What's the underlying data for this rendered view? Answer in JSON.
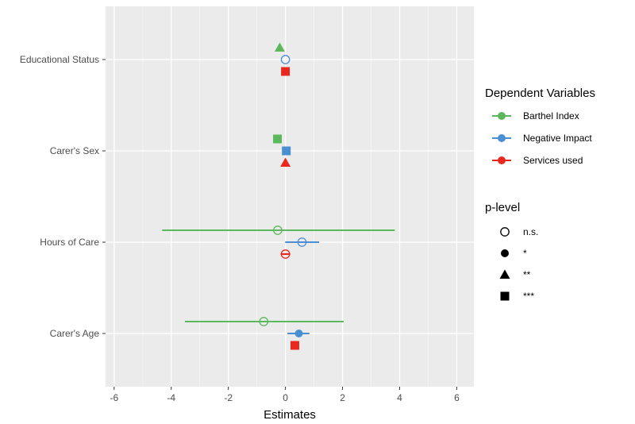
{
  "chart_data": {
    "type": "scatter",
    "subtype": "forest-plot-with-error-bars",
    "xlabel": "Estimates",
    "ylabel": "",
    "xlim": [
      -6.3,
      6.6
    ],
    "xticks": [
      -6,
      -4,
      -2,
      0,
      2,
      4,
      6
    ],
    "categories": [
      "Educational Status",
      "Carer's Sex",
      "Hours of Care",
      "Carer's Age"
    ],
    "grid": true,
    "legend_position": "right",
    "colors": {
      "Barthel Index": "#5cb85c",
      "Negative Impact": "#4a8fd1",
      "Services used": "#e8281e"
    },
    "legends": [
      {
        "title": "Dependent Variables",
        "entries": [
          "Barthel Index",
          "Negative Impact",
          "Services used"
        ]
      },
      {
        "title": "p-level",
        "entries": [
          {
            "label": "n.s.",
            "shape": "open-circle"
          },
          {
            "label": "*",
            "shape": "circle"
          },
          {
            "label": "**",
            "shape": "triangle"
          },
          {
            "label": "***",
            "shape": "square"
          }
        ]
      }
    ],
    "series": [
      {
        "name": "Barthel Index",
        "points": [
          {
            "category": "Educational Status",
            "estimate": -0.2,
            "p_level": "**"
          },
          {
            "category": "Carer's Sex",
            "estimate": -0.28,
            "p_level": "***"
          },
          {
            "category": "Hours of Care",
            "estimate": -0.27,
            "ci": [
              -4.32,
              3.83
            ],
            "p_level": "n.s."
          },
          {
            "category": "Carer's Age",
            "estimate": -0.76,
            "ci": [
              -3.52,
              2.04
            ],
            "p_level": "n.s."
          }
        ]
      },
      {
        "name": "Negative Impact",
        "points": [
          {
            "category": "Educational Status",
            "estimate": 0.0,
            "p_level": "n.s."
          },
          {
            "category": "Carer's Sex",
            "estimate": 0.03,
            "p_level": "***"
          },
          {
            "category": "Hours of Care",
            "estimate": 0.58,
            "ci": [
              -0.01,
              1.18
            ],
            "p_level": "n.s."
          },
          {
            "category": "Carer's Age",
            "estimate": 0.47,
            "ci": [
              0.07,
              0.84
            ],
            "p_level": "*"
          }
        ]
      },
      {
        "name": "Services used",
        "points": [
          {
            "category": "Educational Status",
            "estimate": 0.0,
            "p_level": "***"
          },
          {
            "category": "Carer's Sex",
            "estimate": 0.0,
            "p_level": "**"
          },
          {
            "category": "Hours of Care",
            "estimate": 0.0,
            "ci": [
              -0.17,
              0.17
            ],
            "p_level": "n.s."
          },
          {
            "category": "Carer's Age",
            "estimate": 0.33,
            "p_level": "***"
          }
        ]
      }
    ]
  }
}
